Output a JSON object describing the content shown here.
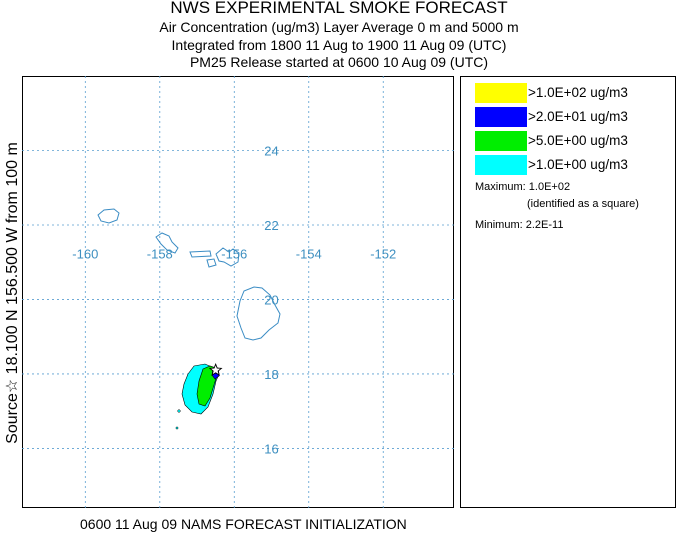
{
  "title": "NWS EXPERIMENTAL SMOKE FORECAST",
  "subtitle_lines": [
    "Air Concentration (ug/m3) Layer Average    0 m and  5000 m",
    "Integrated from 1800 11 Aug to 1900 11 Aug 09 (UTC)",
    "PM25 Release started at 0600 10 Aug 09 (UTC)"
  ],
  "side_label": "Source☆ 18.100 N 156.500  W       from   100 m",
  "footer": "0600 11 Aug 09 NAMS FORECAST INITIALIZATION",
  "map": {
    "lon_range": [
      -161.7,
      -150.1
    ],
    "lat_range": [
      14.4,
      26.0
    ],
    "lon_ticks": [
      "-160",
      "-158",
      "-156",
      "-154",
      "-152"
    ],
    "lat_ticks": [
      "24",
      "22",
      "20",
      "18",
      "16"
    ],
    "source": {
      "lon": -156.5,
      "lat": 18.1,
      "marker": "star-icon"
    },
    "colors": {
      "grid": "#5a9fd0",
      "coast": "#3a8cc4",
      "tick_label": "#3d8fc0"
    }
  },
  "legend": {
    "items": [
      {
        "color": "#ffff00",
        "label": ">1.0E+02 ug/m3"
      },
      {
        "color": "#0000ff",
        "label": ">2.0E+01 ug/m3"
      },
      {
        "color": "#00ee00",
        "label": ">5.0E+00 ug/m3"
      },
      {
        "color": "#00ffff",
        "label": ">1.0E+00 ug/m3"
      }
    ],
    "maximum": "Maximum: 1.0E+02",
    "maximum_note": "(identified as a square)",
    "minimum": "Minimum: 2.2E-11"
  }
}
